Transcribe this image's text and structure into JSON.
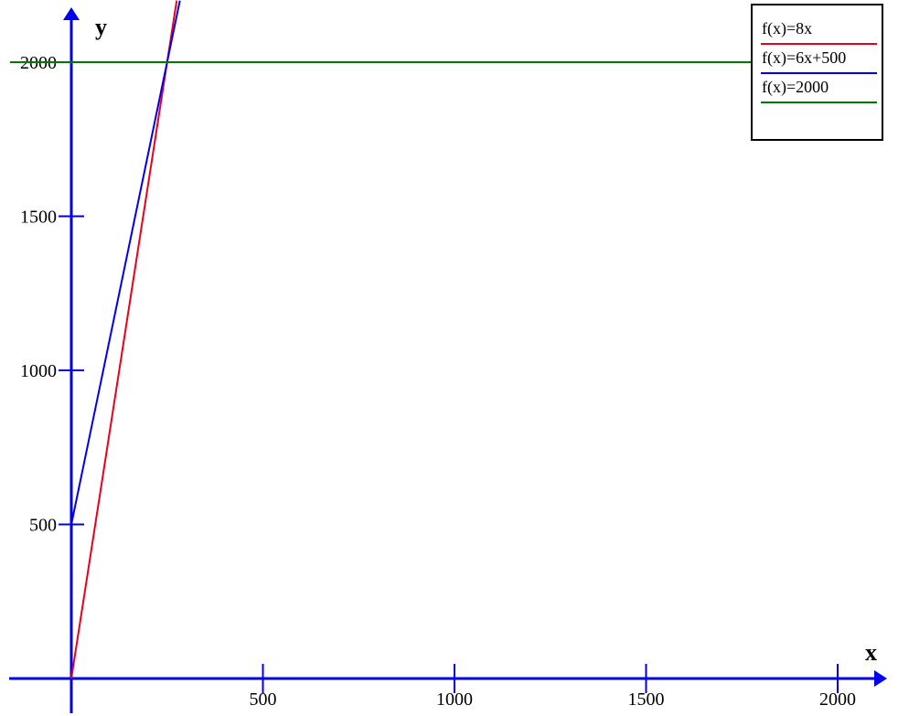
{
  "chart_data": {
    "type": "line",
    "title": "",
    "xlabel": "x",
    "ylabel": "y",
    "xlim": [
      0,
      2100
    ],
    "ylim": [
      0,
      2200
    ],
    "x_ticks": [
      500,
      1000,
      1500,
      2000
    ],
    "x_tick_labels": [
      "500",
      "1000",
      "1500",
      "2000"
    ],
    "y_ticks": [
      500,
      1000,
      1500,
      2000
    ],
    "y_tick_labels": [
      "500",
      "1000",
      "1500",
      "2000"
    ],
    "grid": false,
    "legend_position": "top-right",
    "series": [
      {
        "name": "f(x)=8x",
        "color": "#e8001c",
        "slope": 8,
        "intercept": 0,
        "x": [
          0,
          275
        ],
        "y": [
          0,
          2200
        ]
      },
      {
        "name": "f(x)=6x+500",
        "color": "#0000ee",
        "slope": 6,
        "intercept": 500,
        "x": [
          0,
          283.3
        ],
        "y": [
          500,
          2200
        ]
      },
      {
        "name": "f(x)=2000",
        "color": "#007a00",
        "slope": 0,
        "intercept": 2000,
        "x": [
          0,
          2100
        ],
        "y": [
          2000,
          2000
        ]
      }
    ],
    "axis_color": "#0000ee"
  }
}
